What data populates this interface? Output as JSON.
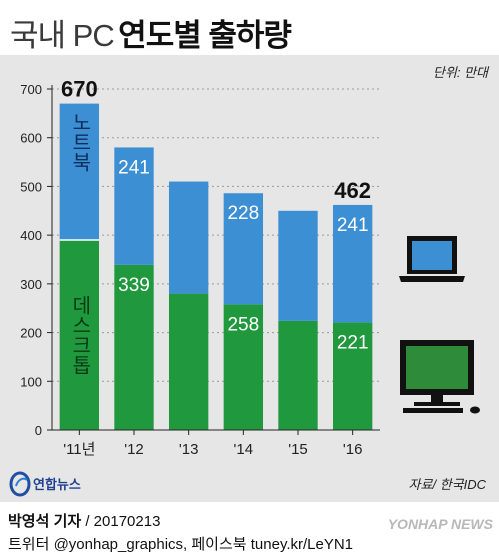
{
  "title": {
    "light": "국내 PC",
    "bold": "연도별 출하량"
  },
  "unit_label": "단위: 만대",
  "source_label": "자료/ 한국IDC",
  "logo_text": "연합뉴스",
  "footer": {
    "author": "박영석 기자",
    "date": "/ 20170213",
    "social": "트위터 @yonhap_graphics, 페이스북 tuney.kr/LeYN1"
  },
  "watermark": "YONHAP NEWS",
  "colors": {
    "laptop": "#3d8fd4",
    "desktop": "#20993e",
    "background": "#e6e6e6"
  },
  "icons": [
    "laptop-icon",
    "desktop-icon",
    "yonhap-logo-icon"
  ],
  "chart_data": {
    "type": "bar",
    "stacked": true,
    "categories": [
      "'11년",
      "'12",
      "'13",
      "'14",
      "'15",
      "'16"
    ],
    "series": [
      {
        "name": "데스크톱",
        "values": [
          390,
          339,
          280,
          258,
          224,
          221
        ],
        "labels": [
          "",
          "339",
          "",
          "258",
          "",
          "221"
        ]
      },
      {
        "name": "노트북",
        "values": [
          280,
          241,
          230,
          228,
          226,
          241
        ],
        "labels": [
          "",
          "241",
          "",
          "228",
          "",
          "241"
        ]
      }
    ],
    "totals": [
      "670",
      "",
      "",
      "",
      "",
      "462"
    ],
    "ylim": [
      0,
      700
    ],
    "yticks": [
      0,
      100,
      200,
      300,
      400,
      500,
      600,
      700
    ],
    "grid": true
  }
}
